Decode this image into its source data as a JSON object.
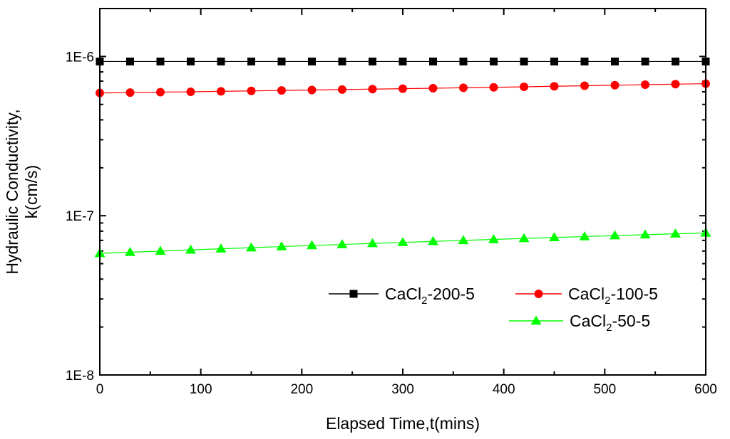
{
  "chart_data": {
    "type": "line",
    "xlabel": "Elapsed Time,t(mins)",
    "ylabel_lines": [
      "Hydraulic Conductivity,",
      "k(cm/s)"
    ],
    "xlim": [
      0,
      600
    ],
    "ylim": [
      1e-08,
      2e-06
    ],
    "yscale": "log",
    "x_ticks": [
      0,
      100,
      200,
      300,
      400,
      500,
      600
    ],
    "x_tick_labels": [
      "0",
      "100",
      "200",
      "300",
      "400",
      "500",
      "600"
    ],
    "y_ticks": [
      1e-08,
      1e-07,
      1e-06
    ],
    "y_tick_labels": [
      "1E-8",
      "1E-7",
      "1E-6"
    ],
    "x": [
      0,
      30,
      60,
      90,
      120,
      150,
      180,
      210,
      240,
      270,
      300,
      330,
      360,
      390,
      420,
      450,
      480,
      510,
      540,
      570,
      600
    ],
    "series": [
      {
        "name_main": "CaCl",
        "name_sub": "2",
        "name_suffix": "-200-5",
        "marker": "square",
        "color": "#000000",
        "values": [
          9.3e-07,
          9.3e-07,
          9.3e-07,
          9.3e-07,
          9.3e-07,
          9.3e-07,
          9.3e-07,
          9.3e-07,
          9.3e-07,
          9.3e-07,
          9.3e-07,
          9.3e-07,
          9.3e-07,
          9.3e-07,
          9.3e-07,
          9.3e-07,
          9.3e-07,
          9.3e-07,
          9.3e-07,
          9.3e-07,
          9.3e-07
        ]
      },
      {
        "name_main": "CaCl",
        "name_sub": "2",
        "name_suffix": "-100-5",
        "marker": "circle",
        "color": "#ff0000",
        "values": [
          5.9e-07,
          5.93e-07,
          5.97e-07,
          6e-07,
          6.04e-07,
          6.08e-07,
          6.12e-07,
          6.16e-07,
          6.2e-07,
          6.24e-07,
          6.28e-07,
          6.32e-07,
          6.36e-07,
          6.4e-07,
          6.45e-07,
          6.5e-07,
          6.55e-07,
          6.6e-07,
          6.65e-07,
          6.7e-07,
          6.75e-07
        ]
      },
      {
        "name_main": "CaCl",
        "name_sub": "2",
        "name_suffix": "-50-5",
        "marker": "triangle",
        "color": "#00ff00",
        "values": [
          5.8e-08,
          5.9e-08,
          6e-08,
          6.1e-08,
          6.2e-08,
          6.3e-08,
          6.4e-08,
          6.5e-08,
          6.6e-08,
          6.7e-08,
          6.8e-08,
          6.9e-08,
          7e-08,
          7.1e-08,
          7.2e-08,
          7.3e-08,
          7.4e-08,
          7.5e-08,
          7.6e-08,
          7.7e-08,
          7.8e-08
        ]
      }
    ],
    "legend_position": "lower-right",
    "grid": false
  }
}
